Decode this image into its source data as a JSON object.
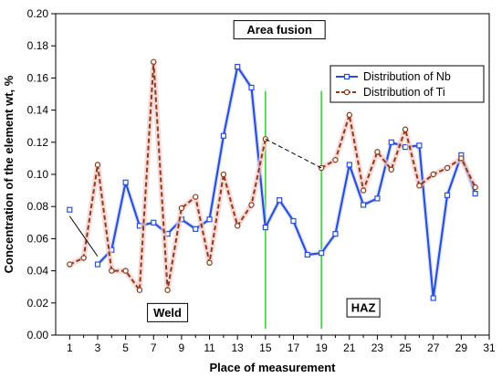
{
  "chart_data": {
    "type": "line",
    "xlabel": "Place of measurement",
    "ylabel": "Concentration of the element wt, %",
    "xlim": [
      0,
      31
    ],
    "ylim": [
      0,
      0.2
    ],
    "x_ticks": [
      1,
      3,
      5,
      7,
      9,
      11,
      13,
      15,
      17,
      19,
      21,
      23,
      25,
      27,
      29,
      31
    ],
    "x_tick_labels": [
      "1",
      "3",
      "5",
      "7",
      "9",
      "11",
      "13",
      "15",
      "17",
      "19",
      "21",
      "23",
      "25",
      "27",
      "29",
      "31"
    ],
    "y_ticks": [
      0,
      0.02,
      0.04,
      0.06,
      0.08,
      0.1,
      0.12,
      0.14,
      0.16,
      0.18,
      0.2
    ],
    "y_tick_labels": [
      "0.00",
      "0.02",
      "0.04",
      "0.06",
      "0.08",
      "0.10",
      "0.12",
      "0.14",
      "0.16",
      "0.18",
      "0.20"
    ],
    "grid": false,
    "legend_position": "top-right",
    "series": [
      {
        "name": "Distribution of Nb",
        "color": "#2b4fd6",
        "style": "solid",
        "marker": "square",
        "x": [
          1,
          3,
          4,
          5,
          6,
          7,
          8,
          9,
          10,
          11,
          12,
          13,
          14,
          15,
          16,
          17,
          18,
          19,
          20,
          21,
          22,
          23,
          24,
          25,
          26,
          27,
          28,
          29,
          30
        ],
        "y": [
          0.078,
          0.044,
          0.053,
          0.095,
          0.068,
          0.07,
          0.063,
          0.072,
          0.066,
          0.072,
          0.124,
          0.167,
          0.154,
          0.067,
          0.084,
          0.071,
          0.05,
          0.051,
          0.063,
          0.106,
          0.081,
          0.085,
          0.12,
          0.117,
          0.118,
          0.023,
          0.087,
          0.112,
          0.088
        ]
      },
      {
        "name": "Distribution of Ti",
        "color": "#8b3a1a",
        "style": "dashed",
        "marker": "circle",
        "x": [
          1,
          2,
          3,
          4,
          5,
          6,
          7,
          8,
          9,
          10,
          11,
          12,
          13,
          14,
          15,
          19,
          20,
          21,
          22,
          23,
          24,
          25,
          26,
          27,
          28,
          29,
          30
        ],
        "y": [
          0.044,
          0.048,
          0.106,
          0.04,
          0.04,
          0.028,
          0.17,
          0.028,
          0.079,
          0.086,
          0.045,
          0.1,
          0.068,
          0.081,
          0.122,
          0.104,
          0.109,
          0.137,
          0.09,
          0.114,
          0.103,
          0.128,
          0.093,
          0.1,
          0.104,
          0.11,
          0.092
        ]
      }
    ],
    "annotations": [
      {
        "text": "Area fusion",
        "x": 16,
        "y": 0.19
      },
      {
        "text": "Weld",
        "x": 8,
        "y": 0.014
      },
      {
        "text": "HAZ",
        "x": 22,
        "y": 0.017
      }
    ],
    "vertical_lines": [
      15,
      19
    ],
    "vertical_line_color": "#33cc33",
    "extra_segments": [
      {
        "from": [
          1,
          0.074
        ],
        "to": [
          3,
          0.049
        ],
        "color": "#000000",
        "style": "solid"
      },
      {
        "from": [
          15,
          0.122
        ],
        "to": [
          19,
          0.104
        ],
        "color": "#000000",
        "style": "dashed"
      }
    ]
  }
}
